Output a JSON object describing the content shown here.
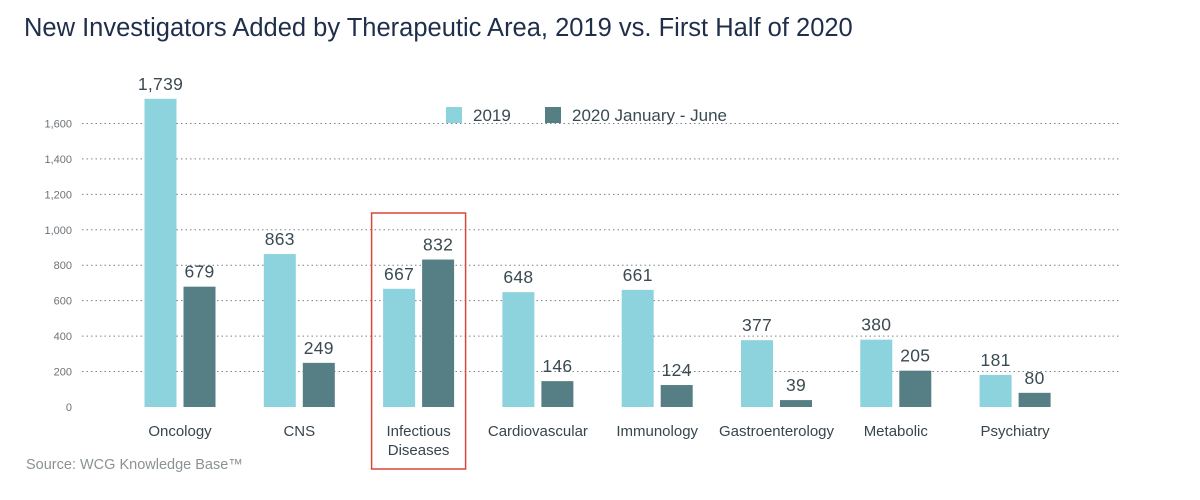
{
  "title": "New Investigators Added by Therapeutic Area, 2019 vs. First Half of 2020",
  "source": "Source: WCG Knowledge Base™",
  "chart_data": {
    "type": "bar",
    "title": "New Investigators Added by Therapeutic Area, 2019 vs. First Half of 2020",
    "xlabel": "",
    "ylabel": "",
    "ylim": [
      0,
      1800
    ],
    "yticks": [
      0,
      200,
      400,
      600,
      800,
      1000,
      1200,
      1400,
      1600
    ],
    "ytick_labels": [
      "0",
      "200",
      "400",
      "600",
      "800",
      "1,000",
      "1,200",
      "1,400",
      "1,600"
    ],
    "grid": true,
    "legend_position": "top-center",
    "categories": [
      [
        "Oncology"
      ],
      [
        "CNS"
      ],
      [
        "Infectious",
        "Diseases"
      ],
      [
        "Cardiovascular"
      ],
      [
        "Immunology"
      ],
      [
        "Gastroenterology"
      ],
      [
        "Metabolic"
      ],
      [
        "Psychiatry"
      ]
    ],
    "series": [
      {
        "name": "2019",
        "color": "#8dd3dd",
        "values": [
          1739,
          863,
          667,
          648,
          661,
          377,
          380,
          181
        ],
        "labels": [
          "1,739",
          "863",
          "667",
          "648",
          "661",
          "377",
          "380",
          "181"
        ]
      },
      {
        "name": "2020 January - June",
        "color": "#567f85",
        "values": [
          679,
          249,
          832,
          146,
          124,
          39,
          205,
          80
        ],
        "labels": [
          "679",
          "249",
          "832",
          "146",
          "124",
          "39",
          "205",
          "80"
        ]
      }
    ],
    "highlighted_category_index": 2,
    "highlight_color": "#d9473b"
  }
}
